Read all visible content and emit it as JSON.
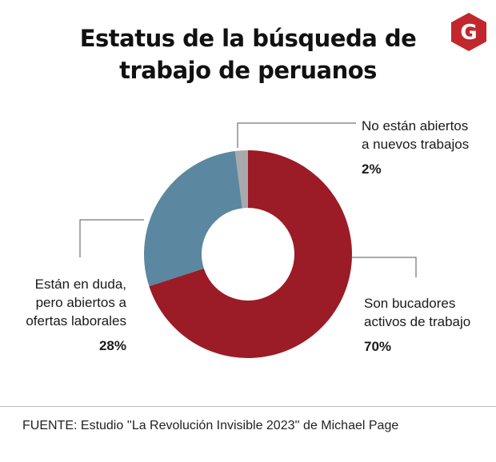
{
  "title_line1": "Estatus de la búsqueda de",
  "title_line2": "trabajo de peruanos",
  "logo": {
    "icon": "g-hexagon-logo",
    "letter": "G",
    "color": "#c1272d"
  },
  "chart_data": {
    "type": "pie",
    "donut": true,
    "slices": [
      {
        "label_lines": [
          "No están abiertos",
          "a nuevos trabajos"
        ],
        "value": 2,
        "value_label": "2%",
        "color": "#a8a9ad"
      },
      {
        "label_lines": [
          "Son bucadores",
          "activos de trabajo"
        ],
        "value": 70,
        "value_label": "70%",
        "color": "#9b1c26"
      },
      {
        "label_lines": [
          "Están en duda,",
          "pero abiertos a",
          "ofertas laborales"
        ],
        "value": 28,
        "value_label": "28%",
        "color": "#5b87a0"
      }
    ]
  },
  "source": "FUENTE: Estudio ''La Revolución Invisible 2023'' de Michael Page"
}
